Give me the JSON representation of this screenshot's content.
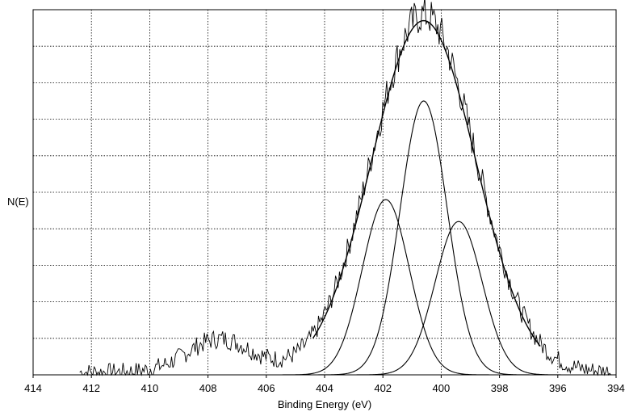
{
  "chart_data": {
    "type": "line",
    "title": "",
    "xlabel": "Binding Energy (eV)",
    "ylabel": "N(E)",
    "xlim": [
      414,
      394
    ],
    "x_reversed": true,
    "ylim": [
      0,
      1
    ],
    "grid": true,
    "grid_style": "dotted",
    "x_ticks": [
      414,
      412,
      410,
      408,
      406,
      404,
      402,
      400,
      398,
      396,
      394
    ],
    "y_gridlines": 10,
    "peaks": [
      {
        "center": 401.9,
        "height": 0.48,
        "fwhm": 1.9
      },
      {
        "center": 400.6,
        "height": 0.75,
        "fwhm": 1.9
      },
      {
        "center": 399.4,
        "height": 0.42,
        "fwhm": 1.9
      }
    ],
    "envelope": {
      "center": 400.6,
      "height": 0.97,
      "fwhm": 4.2
    },
    "measured_range": [
      412.4,
      394.1
    ],
    "noise_level": 0.05,
    "colors": {
      "line": "#000000",
      "grid": "#000000",
      "background": "#ffffff"
    }
  }
}
